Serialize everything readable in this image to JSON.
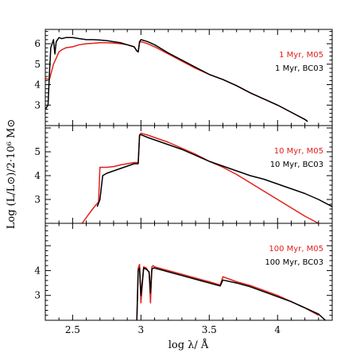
{
  "chart_data": {
    "type": "line",
    "xlabel": "log λ/ Å",
    "ylabel": "Log (L/L⊙)/2·10⁶ M⊙",
    "xlim": [
      2.3,
      4.4
    ],
    "x_ticks": [
      2.5,
      3,
      3.5,
      4
    ],
    "x_tick_labels": [
      "2.5",
      "3",
      "3.5",
      "4"
    ],
    "grid": false,
    "legend_position": "right",
    "colors": {
      "M05": "#e0201b",
      "BC03": "#000000"
    },
    "panels": [
      {
        "ylim": [
          2.0,
          6.7
        ],
        "y_ticks": [
          3,
          4,
          5,
          6
        ],
        "y_tick_labels": [
          "3",
          "4",
          "5",
          "6"
        ],
        "series": [
          {
            "name": "1 Myr, M05",
            "color": "#e0201b",
            "x": [
              2.3,
              2.33,
              2.36,
              2.38,
              2.4,
              2.42,
              2.45,
              2.5,
              2.55,
              2.6,
              2.65,
              2.7,
              2.75,
              2.8,
              2.85,
              2.9,
              2.95,
              2.97,
              2.98,
              2.99,
              3.0,
              3.05,
              3.1,
              3.2,
              3.3,
              3.4,
              3.5,
              3.6,
              3.7,
              3.8,
              3.9,
              4.0,
              4.1,
              4.2,
              4.22
            ],
            "y": [
              4.3,
              4.25,
              5.0,
              5.3,
              5.6,
              5.7,
              5.8,
              5.85,
              5.95,
              6.0,
              6.02,
              6.05,
              6.05,
              6.03,
              6.0,
              5.95,
              5.85,
              5.65,
              5.6,
              6.05,
              6.1,
              6.0,
              5.85,
              5.5,
              5.15,
              4.8,
              4.5,
              4.25,
              3.95,
              3.6,
              3.3,
              3.0,
              2.65,
              2.3,
              2.2
            ]
          },
          {
            "name": "1 Myr, BC03",
            "color": "#000000",
            "x": [
              2.3,
              2.32,
              2.33,
              2.34,
              2.36,
              2.37,
              2.38,
              2.4,
              2.42,
              2.45,
              2.5,
              2.55,
              2.6,
              2.65,
              2.7,
              2.75,
              2.8,
              2.85,
              2.9,
              2.95,
              2.97,
              2.98,
              2.99,
              3.0,
              3.05,
              3.1,
              3.2,
              3.3,
              3.4,
              3.5,
              3.6,
              3.7,
              3.8,
              3.9,
              4.0,
              4.1,
              4.2,
              4.22
            ],
            "y": [
              2.8,
              3.0,
              4.5,
              5.8,
              6.2,
              5.5,
              6.1,
              6.3,
              6.25,
              6.3,
              6.3,
              6.25,
              6.2,
              6.2,
              6.18,
              6.15,
              6.1,
              6.05,
              5.95,
              5.85,
              5.65,
              5.6,
              6.1,
              6.2,
              6.1,
              5.95,
              5.55,
              5.2,
              4.85,
              4.5,
              4.25,
              3.95,
              3.6,
              3.3,
              3.0,
              2.65,
              2.3,
              2.2
            ]
          }
        ]
      },
      {
        "ylim": [
          2.0,
          6.1
        ],
        "y_ticks": [
          3,
          4,
          5
        ],
        "y_tick_labels": [
          "3",
          "4",
          "5"
        ],
        "series": [
          {
            "name": "10 Myr, M05",
            "color": "#e0201b",
            "x": [
              2.57,
              2.62,
              2.66,
              2.69,
              2.7,
              2.75,
              2.8,
              2.85,
              2.9,
              2.95,
              2.97,
              2.98,
              2.99,
              3.0,
              3.05,
              3.1,
              3.2,
              3.3,
              3.4,
              3.5,
              3.6,
              3.7,
              3.8,
              3.9,
              4.0,
              4.1,
              4.2,
              4.3
            ],
            "y": [
              2.0,
              2.4,
              2.7,
              2.9,
              4.35,
              4.35,
              4.38,
              4.45,
              4.5,
              4.55,
              4.55,
              4.55,
              5.7,
              5.78,
              5.7,
              5.6,
              5.4,
              5.15,
              4.9,
              4.6,
              4.35,
              4.05,
              3.7,
              3.35,
              3.0,
              2.65,
              2.3,
              2.0
            ]
          },
          {
            "name": "10 Myr, BC03",
            "color": "#000000",
            "x": [
              2.68,
              2.7,
              2.72,
              2.75,
              2.8,
              2.85,
              2.9,
              2.95,
              2.97,
              2.98,
              2.99,
              3.0,
              3.05,
              3.1,
              3.2,
              3.3,
              3.4,
              3.5,
              3.6,
              3.7,
              3.8,
              3.9,
              4.0,
              4.1,
              4.2,
              4.3,
              4.4
            ],
            "y": [
              2.7,
              3.0,
              4.0,
              4.1,
              4.2,
              4.3,
              4.4,
              4.5,
              4.5,
              4.5,
              5.7,
              5.72,
              5.6,
              5.5,
              5.3,
              5.1,
              4.85,
              4.6,
              4.4,
              4.2,
              4.0,
              3.85,
              3.65,
              3.45,
              3.25,
              3.0,
              2.7
            ]
          }
        ]
      },
      {
        "ylim": [
          2.0,
          5.9
        ],
        "y_ticks": [
          3,
          4
        ],
        "y_tick_labels": [
          "3",
          "4"
        ],
        "series": [
          {
            "name": "100 Myr, M05",
            "color": "#e0201b",
            "x": [
              2.97,
              2.98,
              2.99,
              3.0,
              3.02,
              3.04,
              3.06,
              3.07,
              3.08,
              3.09,
              3.1,
              3.2,
              3.3,
              3.4,
              3.5,
              3.58,
              3.6,
              3.7,
              3.8,
              3.9,
              4.0,
              4.1,
              4.2,
              4.3
            ],
            "y": [
              2.0,
              4.1,
              4.25,
              2.7,
              4.15,
              4.1,
              3.9,
              2.7,
              4.15,
              4.2,
              4.15,
              4.0,
              3.85,
              3.7,
              3.55,
              3.42,
              3.75,
              3.55,
              3.4,
              3.2,
              3.0,
              2.75,
              2.5,
              2.2
            ]
          },
          {
            "name": "100 Myr, BC03",
            "color": "#000000",
            "x": [
              2.97,
              2.98,
              2.99,
              3.0,
              3.02,
              3.04,
              3.06,
              3.07,
              3.08,
              3.09,
              3.1,
              3.2,
              3.3,
              3.4,
              3.5,
              3.58,
              3.6,
              3.7,
              3.8,
              3.9,
              4.0,
              4.1,
              4.2,
              4.3,
              4.35
            ],
            "y": [
              2.0,
              4.0,
              4.1,
              3.0,
              4.1,
              4.05,
              3.95,
              3.1,
              4.05,
              4.1,
              4.1,
              3.95,
              3.8,
              3.65,
              3.5,
              3.38,
              3.62,
              3.5,
              3.35,
              3.15,
              2.95,
              2.75,
              2.5,
              2.25,
              2.0
            ]
          }
        ]
      }
    ]
  }
}
